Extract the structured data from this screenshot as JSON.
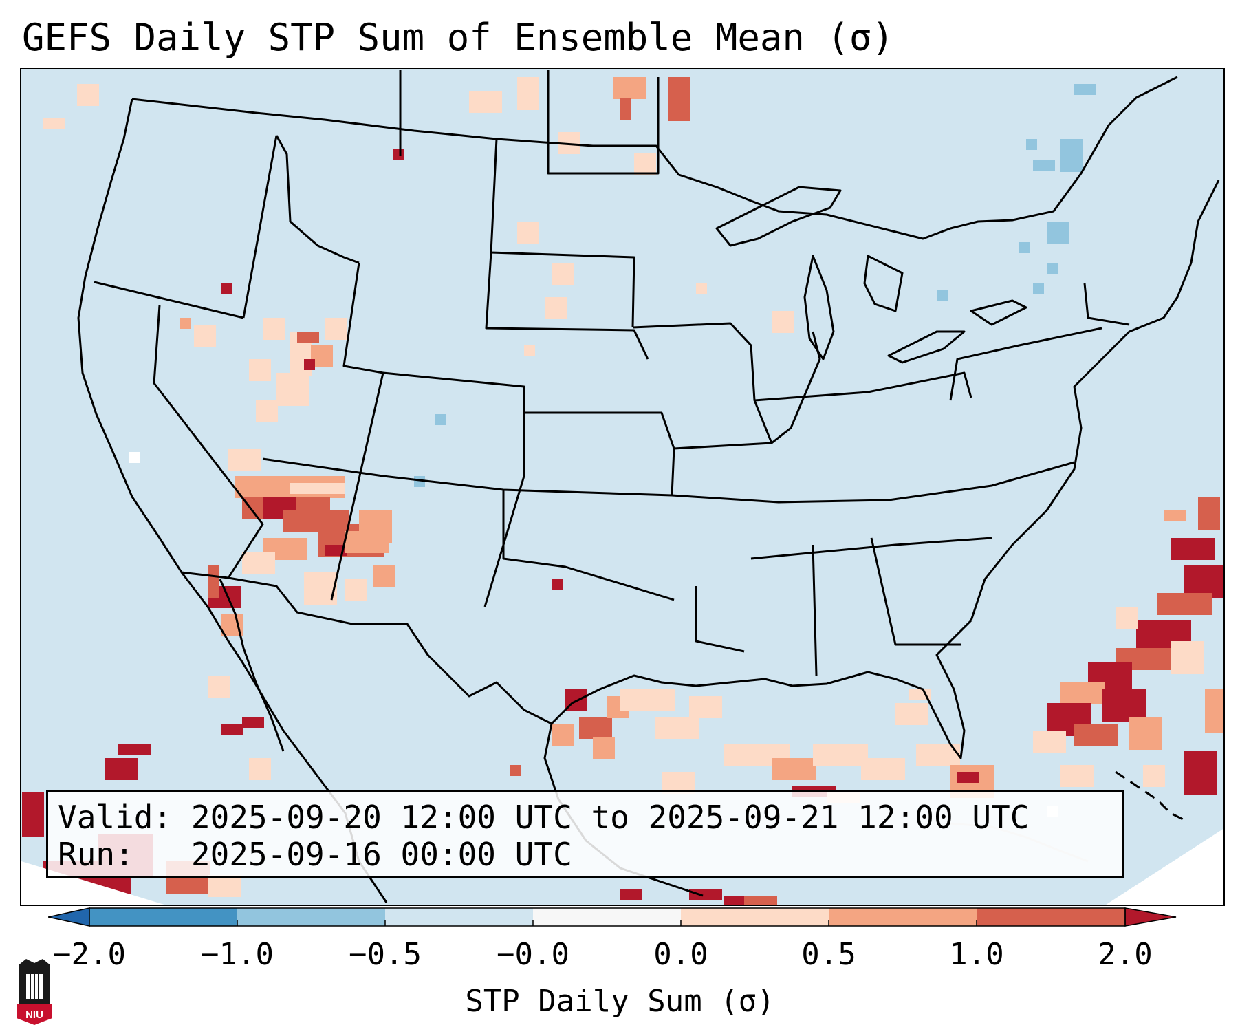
{
  "title": "GEFS Daily STP Sum of Ensemble Mean (σ)",
  "info": {
    "valid_label": "Valid:",
    "valid_value": "2025-09-20 12:00 UTC to 2025-09-21 12:00 UTC",
    "run_label": "Run:",
    "run_value": "2025-09-16 00:00 UTC"
  },
  "colorbar": {
    "label": "STP Daily Sum (σ)",
    "ticks": [
      "−2.0",
      "−1.0",
      "−0.5",
      "−0.0",
      "0.0",
      "0.5",
      "1.0",
      "2.0"
    ],
    "colors": [
      "#2166ac",
      "#4393c3",
      "#92c5de",
      "#d1e5f0",
      "#f7f7f7",
      "#fddbc7",
      "#f4a582",
      "#d6604d",
      "#b2182b"
    ]
  },
  "logo": {
    "text": "NIU",
    "colors": {
      "shield": "#c8102e",
      "tower": "#1a1a1a"
    }
  },
  "map": {
    "background_class": "-0.5 to 0.0",
    "features": [
      "US state borders",
      "Canada provinces",
      "Mexico",
      "Gulf of Mexico",
      "Great Lakes"
    ]
  }
}
